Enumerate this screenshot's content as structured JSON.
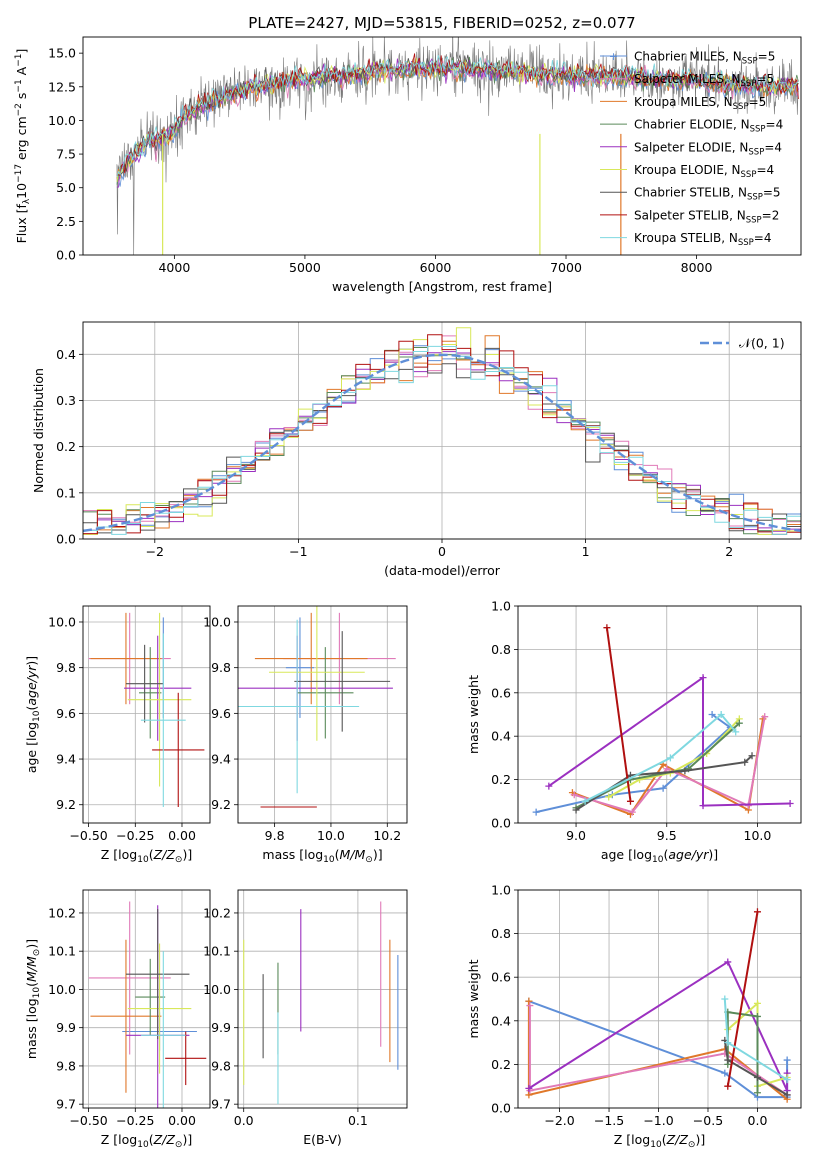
{
  "chart_data": [
    {
      "id": "spectrum",
      "type": "line",
      "title": "PLATE=2427, MJD=53815, FIBERID=0252, z=0.077",
      "xlabel": "wavelength [Angstrom, rest frame]",
      "ylabel": "Flux [f_λ10^-17 erg cm^-2 s^-1 A^-1]",
      "xlim": [
        3300,
        8800
      ],
      "ylim": [
        0,
        16.2
      ],
      "xticks": [
        4000,
        5000,
        6000,
        7000,
        8000
      ],
      "yticks": [
        0.0,
        2.5,
        5.0,
        7.5,
        10.0,
        12.5,
        15.0
      ],
      "legend": "right",
      "continuum": {
        "x": [
          3550,
          3650,
          3800,
          3950,
          4100,
          4300,
          4500,
          4800,
          5100,
          5400,
          5700,
          6000,
          6300,
          6600,
          6900,
          7200,
          7500,
          7800,
          8100,
          8400,
          8800
        ],
        "y": [
          5.5,
          7.0,
          8.5,
          8.8,
          10.5,
          11.5,
          12.2,
          12.8,
          13.2,
          13.5,
          13.8,
          13.9,
          13.8,
          13.6,
          13.4,
          13.3,
          13.2,
          13.0,
          12.8,
          12.6,
          12.5
        ]
      },
      "series": [
        {
          "name": "Chabrier MILES, N_SSP=5",
          "color": "#5f8fd8"
        },
        {
          "name": "Salpeter MILES, N_SSP=5",
          "color": "#e07ab8"
        },
        {
          "name": "Kroupa MILES, N_SSP=5",
          "color": "#e0782a"
        },
        {
          "name": "Chabrier ELODIE, N_SSP=4",
          "color": "#5a8a5a"
        },
        {
          "name": "Salpeter ELODIE, N_SSP=4",
          "color": "#9b30c0"
        },
        {
          "name": "Kroupa ELODIE, N_SSP=4",
          "color": "#d8e85a"
        },
        {
          "name": "Chabrier STELIB, N_SSP=5",
          "color": "#555555"
        },
        {
          "name": "Salpeter STELIB, N_SSP=2",
          "color": "#b01010"
        },
        {
          "name": "Kroupa STELIB, N_SSP=4",
          "color": "#7fd8e0"
        }
      ]
    },
    {
      "id": "residuals",
      "type": "line",
      "xlabel": "(data-model)/error",
      "ylabel": "Normed distribution",
      "xlim": [
        -2.5,
        2.5
      ],
      "ylim": [
        0,
        0.47
      ],
      "xticks": [
        -2,
        -1,
        0,
        1,
        2
      ],
      "yticks": [
        0.0,
        0.1,
        0.2,
        0.3,
        0.4
      ],
      "grid": true,
      "legend": "top-right",
      "gaussian_label": "𝒩(0, 1)",
      "gaussian_color": "#5f8fd8"
    },
    {
      "id": "age_vs_z",
      "type": "scatter",
      "xlabel": "Z [log10(Z/Z⊙)]",
      "ylabel": "age  [log10(age/yr)]",
      "xlim": [
        -0.53,
        0.15
      ],
      "ylim": [
        9.12,
        10.07
      ],
      "xticks": [
        -0.5,
        -0.25,
        0.0
      ],
      "yticks": [
        9.2,
        9.4,
        9.6,
        9.8,
        10.0
      ],
      "grid": true,
      "points": [
        {
          "x": -0.1,
          "xe": 0.0,
          "y": 9.8,
          "ye": 0.22,
          "color": "#5f8fd8"
        },
        {
          "x": -0.28,
          "xe": 0.22,
          "y": 9.84,
          "ye": 0.2,
          "color": "#e07ab8"
        },
        {
          "x": -0.3,
          "xe": 0.19,
          "y": 9.84,
          "ye": 0.2,
          "color": "#e0782a"
        },
        {
          "x": -0.17,
          "xe": 0.06,
          "y": 9.69,
          "ye": 0.2,
          "color": "#5a8a5a"
        },
        {
          "x": -0.13,
          "xe": 0.18,
          "y": 9.71,
          "ye": 0.23,
          "color": "#9b30c0"
        },
        {
          "x": -0.12,
          "xe": 0.17,
          "y": 9.66,
          "ye": 0.38,
          "color": "#d8e85a"
        },
        {
          "x": -0.2,
          "xe": 0.1,
          "y": 9.73,
          "ye": 0.17,
          "color": "#555555"
        },
        {
          "x": -0.02,
          "xe": 0.14,
          "y": 9.44,
          "ye": 0.25,
          "color": "#b01010"
        },
        {
          "x": -0.1,
          "xe": 0.12,
          "y": 9.57,
          "ye": 0.38,
          "color": "#7fd8e0"
        }
      ]
    },
    {
      "id": "age_vs_mass",
      "type": "scatter",
      "xlabel": "mass [log10(M/M⊙)]",
      "xlim": [
        9.67,
        10.27
      ],
      "ylim": [
        9.12,
        10.07
      ],
      "xticks": [
        9.8,
        10.0,
        10.2
      ],
      "yticks": [
        9.2,
        9.4,
        9.6,
        9.8,
        10.0
      ],
      "grid": true,
      "points": [
        {
          "x": 9.89,
          "xe": 0.05,
          "y": 9.8,
          "ye": 0.22,
          "color": "#5f8fd8"
        },
        {
          "x": 10.03,
          "xe": 0.2,
          "y": 9.84,
          "ye": 0.2,
          "color": "#e07ab8"
        },
        {
          "x": 9.93,
          "xe": 0.2,
          "y": 9.84,
          "ye": 0.2,
          "color": "#e0782a"
        },
        {
          "x": 9.98,
          "xe": 0.1,
          "y": 9.69,
          "ye": 0.2,
          "color": "#5a8a5a"
        },
        {
          "x": 9.88,
          "xe": 0.34,
          "y": 9.71,
          "ye": 0.23,
          "color": "#9b30c0"
        },
        {
          "x": 9.95,
          "xe": 0.17,
          "y": 9.78,
          "ye": 0.3,
          "color": "#d8e85a"
        },
        {
          "x": 10.04,
          "xe": 0.17,
          "y": 9.74,
          "ye": 0.22,
          "color": "#555555"
        },
        {
          "x": 9.85,
          "xe": 0.1,
          "y": 9.19,
          "ye": 0.0,
          "color": "#b01010"
        },
        {
          "x": 9.88,
          "xe": 0.22,
          "y": 9.63,
          "ye": 0.38,
          "color": "#7fd8e0"
        }
      ]
    },
    {
      "id": "weight_vs_age",
      "type": "line",
      "xlabel": "age  [log10(age/yr)]",
      "ylabel": "mass weight",
      "xlim": [
        8.68,
        10.24
      ],
      "ylim": [
        0,
        1.0
      ],
      "xticks": [
        9.0,
        9.5,
        10.0
      ],
      "yticks": [
        0.0,
        0.2,
        0.4,
        0.6,
        0.8,
        1.0
      ],
      "grid": true,
      "series": [
        {
          "color": "#5f8fd8",
          "x": [
            8.78,
            9.2,
            9.48,
            9.85,
            9.75
          ],
          "y": [
            0.05,
            0.13,
            0.16,
            0.44,
            0.5
          ]
        },
        {
          "color": "#e0782a",
          "x": [
            8.98,
            9.3,
            9.48,
            9.95,
            10.03
          ],
          "y": [
            0.14,
            0.04,
            0.27,
            0.06,
            0.48
          ]
        },
        {
          "color": "#e07ab8",
          "x": [
            8.99,
            9.31,
            9.5,
            9.95,
            10.04
          ],
          "y": [
            0.13,
            0.05,
            0.25,
            0.08,
            0.49
          ]
        },
        {
          "color": "#9b30c0",
          "x": [
            8.85,
            9.7,
            9.7,
            10.18
          ],
          "y": [
            0.17,
            0.67,
            0.08,
            0.09
          ]
        },
        {
          "color": "#d8e85a",
          "x": [
            9.18,
            9.35,
            9.52,
            9.72,
            9.9
          ],
          "y": [
            0.12,
            0.2,
            0.23,
            0.32,
            0.48
          ]
        },
        {
          "color": "#5a8a5a",
          "x": [
            9.0,
            9.3,
            9.62,
            9.9
          ],
          "y": [
            0.07,
            0.2,
            0.25,
            0.46
          ]
        },
        {
          "color": "#555555",
          "x": [
            9.0,
            9.3,
            9.6,
            9.93,
            9.97
          ],
          "y": [
            0.06,
            0.22,
            0.24,
            0.28,
            0.31
          ]
        },
        {
          "color": "#b01010",
          "x": [
            9.17,
            9.3
          ],
          "y": [
            0.9,
            0.1
          ]
        },
        {
          "color": "#7fd8e0",
          "x": [
            9.05,
            9.52,
            9.8,
            9.88
          ],
          "y": [
            0.1,
            0.3,
            0.5,
            0.42
          ]
        }
      ]
    },
    {
      "id": "mass_vs_z",
      "type": "scatter",
      "xlabel": "Z [log10(Z/Z⊙)]",
      "ylabel": "mass [log10(M/M⊙)]",
      "xlim": [
        -0.53,
        0.15
      ],
      "ylim": [
        9.69,
        10.26
      ],
      "xticks": [
        -0.5,
        -0.25,
        0.0
      ],
      "yticks": [
        9.7,
        9.8,
        9.9,
        10.0,
        10.1,
        10.2
      ],
      "grid": true,
      "points": [
        {
          "x": -0.12,
          "xe": 0.2,
          "y": 9.89,
          "ye": 0.05,
          "color": "#5f8fd8"
        },
        {
          "x": -0.28,
          "xe": 0.22,
          "y": 10.03,
          "ye": 0.2,
          "color": "#e07ab8"
        },
        {
          "x": -0.3,
          "xe": 0.19,
          "y": 9.93,
          "ye": 0.2,
          "color": "#e0782a"
        },
        {
          "x": -0.17,
          "xe": 0.08,
          "y": 9.98,
          "ye": 0.1,
          "color": "#5a8a5a"
        },
        {
          "x": -0.13,
          "xe": 0.17,
          "y": 9.88,
          "ye": 0.34,
          "color": "#9b30c0"
        },
        {
          "x": -0.12,
          "xe": 0.17,
          "y": 9.95,
          "ye": 0.17,
          "color": "#d8e85a"
        },
        {
          "x": -0.13,
          "xe": 0.17,
          "y": 10.04,
          "ye": 0.17,
          "color": "#555555"
        },
        {
          "x": 0.02,
          "xe": 0.11,
          "y": 9.82,
          "ye": 0.07,
          "color": "#b01010"
        },
        {
          "x": -0.1,
          "xe": 0.12,
          "y": 9.88,
          "ye": 0.22,
          "color": "#7fd8e0"
        }
      ]
    },
    {
      "id": "mass_vs_ebv",
      "type": "scatter",
      "xlabel": "E(B-V)",
      "xlim": [
        -0.005,
        0.143
      ],
      "ylim": [
        9.69,
        10.26
      ],
      "xticks": [
        0.0,
        0.1
      ],
      "yticks": [
        9.7,
        9.8,
        9.9,
        10.0,
        10.1,
        10.2
      ],
      "grid": true,
      "points": [
        {
          "x": 0.135,
          "y": 9.94,
          "ye": 0.15,
          "color": "#5f8fd8"
        },
        {
          "x": 0.12,
          "y": 10.04,
          "ye": 0.19,
          "color": "#e07ab8"
        },
        {
          "x": 0.128,
          "y": 9.97,
          "ye": 0.16,
          "color": "#e0782a"
        },
        {
          "x": 0.03,
          "y": 9.95,
          "ye": 0.12,
          "color": "#5a8a5a"
        },
        {
          "x": 0.05,
          "y": 10.05,
          "ye": 0.16,
          "color": "#9b30c0"
        },
        {
          "x": 0.0,
          "y": 9.94,
          "ye": 0.19,
          "color": "#d8e85a"
        },
        {
          "x": 0.017,
          "y": 9.93,
          "ye": 0.11,
          "color": "#555555"
        },
        {
          "x": 0.03,
          "y": 9.82,
          "ye": 0.12,
          "color": "#7fd8e0"
        }
      ]
    },
    {
      "id": "weight_vs_z",
      "type": "line",
      "xlabel": "Z [log10(Z/Z⊙)]",
      "ylabel": "mass weight",
      "xlim": [
        -2.42,
        0.44
      ],
      "ylim": [
        0,
        1.0
      ],
      "xticks": [
        -2.0,
        -1.5,
        -1.0,
        -0.5,
        0.0
      ],
      "yticks": [
        0.0,
        0.2,
        0.4,
        0.6,
        0.8,
        1.0
      ],
      "grid": true,
      "series": [
        {
          "color": "#5f8fd8",
          "x": [
            -2.31,
            -0.33,
            0.0,
            0.3,
            0.3
          ],
          "y": [
            0.49,
            0.16,
            0.05,
            0.05,
            0.22
          ]
        },
        {
          "color": "#e0782a",
          "x": [
            -2.31,
            -2.31,
            -0.33,
            0.3
          ],
          "y": [
            0.49,
            0.06,
            0.27,
            0.04
          ]
        },
        {
          "color": "#e07ab8",
          "x": [
            -2.3,
            -2.3,
            -0.33,
            0.3
          ],
          "y": [
            0.47,
            0.08,
            0.25,
            0.06
          ]
        },
        {
          "color": "#9b30c0",
          "x": [
            -2.31,
            -0.3,
            0.3,
            0.3
          ],
          "y": [
            0.09,
            0.67,
            0.08,
            0.16
          ]
        },
        {
          "color": "#d8e85a",
          "x": [
            -0.3,
            0.0,
            0.0,
            0.3
          ],
          "y": [
            0.36,
            0.48,
            0.1,
            0.14
          ]
        },
        {
          "color": "#5a8a5a",
          "x": [
            -0.3,
            -0.3,
            0.0,
            0.0
          ],
          "y": [
            0.2,
            0.44,
            0.42,
            0.07
          ]
        },
        {
          "color": "#555555",
          "x": [
            -0.33,
            -0.3,
            0.0,
            0.3
          ],
          "y": [
            0.31,
            0.22,
            0.14,
            0.06
          ]
        },
        {
          "color": "#b01010",
          "x": [
            -0.3,
            0.0
          ],
          "y": [
            0.1,
            0.9
          ]
        },
        {
          "color": "#7fd8e0",
          "x": [
            -0.33,
            -0.3,
            0.3
          ],
          "y": [
            0.5,
            0.3,
            0.13
          ]
        }
      ]
    }
  ]
}
